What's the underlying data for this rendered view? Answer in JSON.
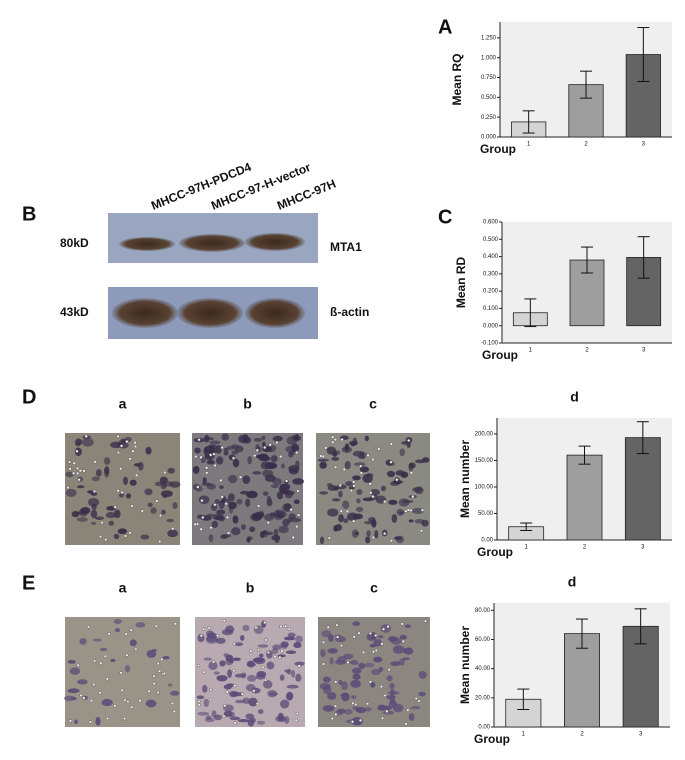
{
  "panels": {
    "a": "A",
    "b": "B",
    "c": "C",
    "d": "D",
    "e": "E"
  },
  "blot": {
    "lanes": [
      "MHCC-97H-PDCD4",
      "MHCC-97-H-vector",
      "MHCC-97H"
    ],
    "bands": [
      {
        "size": "80kD",
        "protein": "MTA1"
      },
      {
        "size": "43kD",
        "protein": "ß-actin"
      }
    ]
  },
  "micrographs": {
    "d": [
      "a",
      "b",
      "c"
    ],
    "e": [
      "a",
      "b",
      "c"
    ]
  },
  "chart_data": [
    {
      "type": "bar",
      "ylabel": "Mean RQ",
      "xlabel": "Group",
      "categories": [
        "1",
        "2",
        "3"
      ],
      "values": [
        0.19,
        0.66,
        1.04
      ],
      "errors": [
        0.14,
        0.17,
        0.34
      ],
      "colors": [
        "#d4d4d4",
        "#9e9e9e",
        "#646464"
      ],
      "ylim": [
        0,
        1.45
      ],
      "yticks": [
        {
          "value": 0,
          "label": "0.000"
        },
        {
          "value": 0.25,
          "label": "0.250"
        },
        {
          "value": 0.5,
          "label": "0.500"
        },
        {
          "value": 0.75,
          "label": "0.750"
        },
        {
          "value": 1,
          "label": "1.000"
        },
        {
          "value": 1.25,
          "label": "1.250"
        }
      ]
    },
    {
      "type": "bar",
      "ylabel": "Mean RD",
      "xlabel": "Group",
      "categories": [
        "1",
        "2",
        "3"
      ],
      "values": [
        0.075,
        0.38,
        0.395
      ],
      "errors": [
        0.08,
        0.075,
        0.12
      ],
      "colors": [
        "#d4d4d4",
        "#9e9e9e",
        "#646464"
      ],
      "ylim": [
        -0.1,
        0.6
      ],
      "yticks": [
        {
          "value": -0.1,
          "label": "-0.100"
        },
        {
          "value": 0,
          "label": "0.000"
        },
        {
          "value": 0.1,
          "label": "0.100"
        },
        {
          "value": 0.2,
          "label": "0.200"
        },
        {
          "value": 0.3,
          "label": "0.300"
        },
        {
          "value": 0.4,
          "label": "0.400"
        },
        {
          "value": 0.5,
          "label": "0.500"
        },
        {
          "value": 0.6,
          "label": "0.600"
        }
      ]
    },
    {
      "type": "bar",
      "title": "d",
      "ylabel": "Mean number",
      "xlabel": "Group",
      "categories": [
        "1",
        "2",
        "3"
      ],
      "values": [
        25,
        160,
        193
      ],
      "errors": [
        7,
        17,
        30
      ],
      "colors": [
        "#d4d4d4",
        "#9e9e9e",
        "#646464"
      ],
      "ylim": [
        0,
        230
      ],
      "yticks": [
        {
          "value": 0,
          "label": "0.00"
        },
        {
          "value": 50,
          "label": "50.00"
        },
        {
          "value": 100,
          "label": "100.00"
        },
        {
          "value": 150,
          "label": "150.00"
        },
        {
          "value": 200,
          "label": "200.00"
        }
      ]
    },
    {
      "type": "bar",
      "title": "d",
      "ylabel": "Mean number",
      "xlabel": "Group",
      "categories": [
        "1",
        "2",
        "3"
      ],
      "values": [
        19,
        64,
        69
      ],
      "errors": [
        7,
        10,
        12
      ],
      "colors": [
        "#d4d4d4",
        "#9e9e9e",
        "#646464"
      ],
      "ylim": [
        0,
        85
      ],
      "yticks": [
        {
          "value": 0,
          "label": "0.00"
        },
        {
          "value": 20,
          "label": "20.00"
        },
        {
          "value": 40,
          "label": "40.00"
        },
        {
          "value": 60,
          "label": "60.00"
        },
        {
          "value": 80,
          "label": "80.00"
        }
      ]
    }
  ]
}
